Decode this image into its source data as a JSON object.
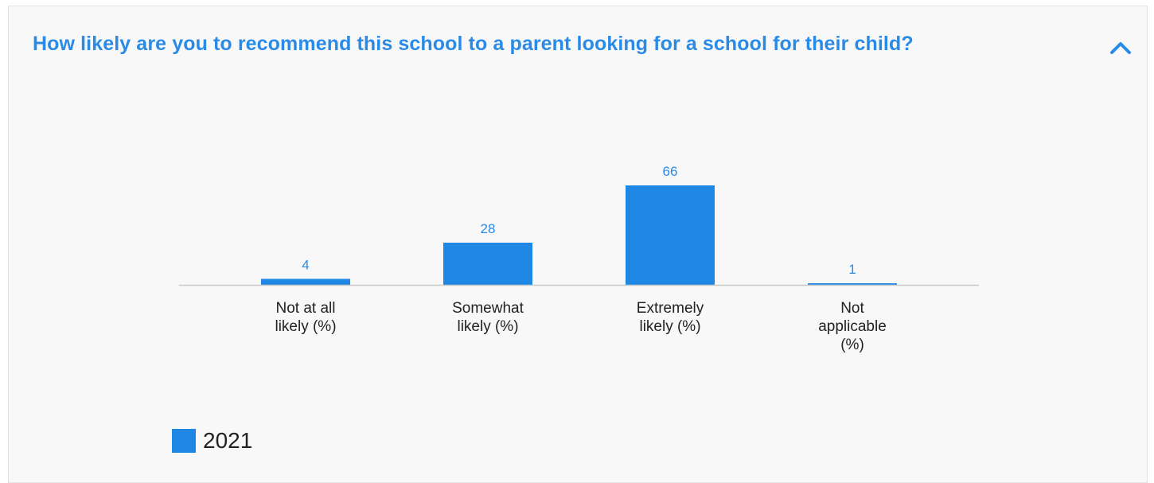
{
  "question": {
    "title": "How likely are you to recommend this school to a parent looking for a school for their child?",
    "toggle_icon": "chevron-up-icon"
  },
  "colors": {
    "accent": "#2a8be6",
    "bar": "#1f88e5",
    "axis": "#c8c8c8",
    "label_text": "#222222",
    "background": "#f8f8f8"
  },
  "chart_data": {
    "type": "bar",
    "categories": [
      [
        "Not at all",
        "likely (%)"
      ],
      [
        "Somewhat",
        "likely (%)"
      ],
      [
        "Extremely",
        "likely (%)"
      ],
      [
        "Not",
        "applicable",
        "(%)"
      ]
    ],
    "series": [
      {
        "name": "2021",
        "values": [
          4,
          28,
          66,
          1
        ]
      }
    ],
    "data_labels": [
      "4",
      "28",
      "66",
      "1"
    ],
    "ylim": [
      0,
      66
    ],
    "grid": false,
    "legend": {
      "position": "bottom-left",
      "entries": [
        "2021"
      ]
    }
  }
}
